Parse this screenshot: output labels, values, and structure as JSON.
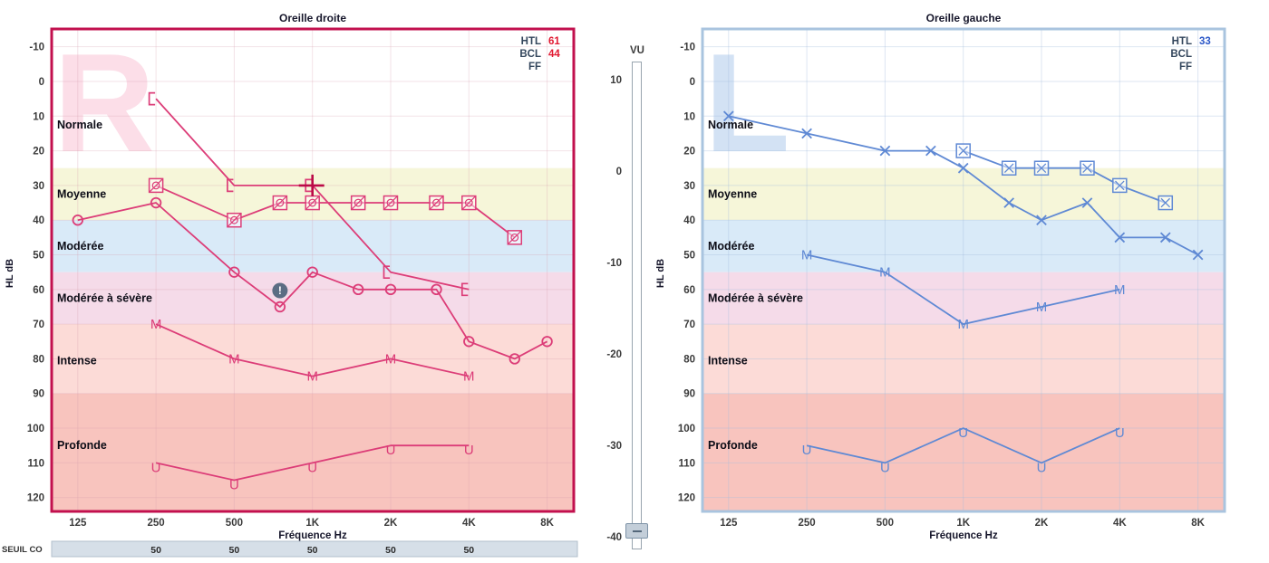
{
  "vu_meter": {
    "label": "VU",
    "ticks": [
      "10",
      "0",
      "-10",
      "-20",
      "-30",
      "-40"
    ]
  },
  "seuil_co": {
    "label": "SEUIL CO",
    "values": [
      "50",
      "50",
      "50",
      "50",
      "50"
    ],
    "freqs": [
      250,
      500,
      1000,
      2000,
      4000
    ]
  },
  "chart_data": [
    {
      "type": "line",
      "ear": "right",
      "title": "Oreille droite",
      "watermark": "R",
      "xlabel": "Fréquence Hz",
      "ylabel": "HL dB",
      "x_ticks": [
        {
          "label": "125",
          "freq": 125
        },
        {
          "label": "250",
          "freq": 250
        },
        {
          "label": "500",
          "freq": 500
        },
        {
          "label": "1K",
          "freq": 1000
        },
        {
          "label": "2K",
          "freq": 2000
        },
        {
          "label": "4K",
          "freq": 4000
        },
        {
          "label": "8K",
          "freq": 8000
        }
      ],
      "y_ticks": [
        -10,
        0,
        10,
        20,
        30,
        40,
        50,
        60,
        70,
        80,
        90,
        100,
        110,
        120
      ],
      "ylim": [
        -15.13,
        124
      ],
      "legend": [
        {
          "label": "HTL",
          "value": "61"
        },
        {
          "label": "BCL",
          "value": "44"
        },
        {
          "label": "FF",
          "value": ""
        }
      ],
      "colors": {
        "border": "#c2104e",
        "series": "#dc3d78",
        "value": "#e11931",
        "watermark": "#fcdee8",
        "grid": "rgba(215,160,175,0.30)",
        "cursor": "#bb0a47",
        "legend_label": "#33465c"
      },
      "bands": [
        {
          "label": "Normale",
          "from_db": -15.13,
          "to_db": 25,
          "color": "#ffffff",
          "label_db": 12.5
        },
        {
          "label": "Moyenne",
          "from_db": 25,
          "to_db": 40,
          "color": "#f6f6d9",
          "label_db": 32.5
        },
        {
          "label": "Modérée",
          "from_db": 40,
          "to_db": 55,
          "color": "#d9eaf8",
          "label_db": 47.5
        },
        {
          "label": "Modérée à sévère",
          "from_db": 55,
          "to_db": 70,
          "color": "#f5dbe9",
          "label_db": 62.5
        },
        {
          "label": "Intense",
          "from_db": 70,
          "to_db": 90,
          "color": "#fcdbd7",
          "label_db": 80.5
        },
        {
          "label": "Profonde",
          "from_db": 90,
          "to_db": 124,
          "color": "#f8c4be",
          "label_db": 105
        }
      ],
      "series": [
        {
          "marker": "circle",
          "points": [
            [
              125,
              40
            ],
            [
              250,
              35
            ],
            [
              500,
              55
            ],
            [
              750,
              65
            ],
            [
              1000,
              55
            ],
            [
              1500,
              60
            ],
            [
              2000,
              60
            ],
            [
              3000,
              60
            ],
            [
              4000,
              75
            ],
            [
              6000,
              80
            ],
            [
              8000,
              75
            ]
          ]
        },
        {
          "marker": "boxed-slash",
          "points": [
            [
              250,
              30
            ],
            [
              500,
              40
            ],
            [
              750,
              35
            ],
            [
              1000,
              35
            ],
            [
              1500,
              35
            ],
            [
              2000,
              35
            ],
            [
              3000,
              35
            ],
            [
              4000,
              35
            ],
            [
              6000,
              45
            ]
          ]
        },
        {
          "marker": "bracket",
          "points": [
            [
              250,
              5
            ],
            [
              500,
              30
            ],
            [
              1000,
              30
            ],
            [
              2000,
              55
            ],
            [
              4000,
              60
            ]
          ]
        },
        {
          "marker": "M",
          "points": [
            [
              250,
              70
            ],
            [
              500,
              80
            ],
            [
              1000,
              85
            ],
            [
              2000,
              80
            ],
            [
              4000,
              85
            ]
          ]
        },
        {
          "marker": "U",
          "points": [
            [
              250,
              110
            ],
            [
              500,
              115
            ],
            [
              1000,
              110
            ],
            [
              2000,
              105
            ],
            [
              4000,
              105
            ]
          ]
        }
      ],
      "annotations": [
        {
          "type": "alert",
          "symbol": "!",
          "freq": 750,
          "db": 60.3
        },
        {
          "type": "cursor-cross",
          "freq": 1000,
          "db": 30
        }
      ],
      "has_seuil_row": true
    },
    {
      "type": "line",
      "ear": "left",
      "title": "Oreille gauche",
      "watermark": "L",
      "xlabel": "Fréquence Hz",
      "ylabel": "HL dB",
      "x_ticks": [
        {
          "label": "125",
          "freq": 125
        },
        {
          "label": "250",
          "freq": 250
        },
        {
          "label": "500",
          "freq": 500
        },
        {
          "label": "1K",
          "freq": 1000
        },
        {
          "label": "2K",
          "freq": 2000
        },
        {
          "label": "4K",
          "freq": 4000
        },
        {
          "label": "8K",
          "freq": 8000
        }
      ],
      "y_ticks": [
        -10,
        0,
        10,
        20,
        30,
        40,
        50,
        60,
        70,
        80,
        90,
        100,
        110,
        120
      ],
      "ylim": [
        -15.13,
        124
      ],
      "legend": [
        {
          "label": "HTL",
          "value": "33"
        },
        {
          "label": "BCL",
          "value": ""
        },
        {
          "label": "FF",
          "value": ""
        }
      ],
      "colors": {
        "border": "#a9c4df",
        "series": "#5f89d4",
        "value": "#2b57c8",
        "watermark": "#d3e2f4",
        "grid": "rgba(165,190,220,0.38)",
        "cursor": "#2b57c8",
        "legend_label": "#33465c"
      },
      "bands": [
        {
          "label": "Normale",
          "from_db": -15.13,
          "to_db": 25,
          "color": "#ffffff",
          "label_db": 12.5
        },
        {
          "label": "Moyenne",
          "from_db": 25,
          "to_db": 40,
          "color": "#f6f6d9",
          "label_db": 32.5
        },
        {
          "label": "Modérée",
          "from_db": 40,
          "to_db": 55,
          "color": "#d9eaf8",
          "label_db": 47.5
        },
        {
          "label": "Modérée à sévère",
          "from_db": 55,
          "to_db": 70,
          "color": "#f5dbe9",
          "label_db": 62.5
        },
        {
          "label": "Intense",
          "from_db": 70,
          "to_db": 90,
          "color": "#fcdbd7",
          "label_db": 80.5
        },
        {
          "label": "Profonde",
          "from_db": 90,
          "to_db": 124,
          "color": "#f8c4be",
          "label_db": 105
        }
      ],
      "series": [
        {
          "marker": "x",
          "points": [
            [
              125,
              10
            ],
            [
              250,
              15
            ],
            [
              500,
              20
            ],
            [
              750,
              20
            ],
            [
              1000,
              25
            ],
            [
              1500,
              35
            ],
            [
              2000,
              40
            ],
            [
              3000,
              35
            ],
            [
              4000,
              45
            ],
            [
              6000,
              45
            ],
            [
              8000,
              50
            ]
          ]
        },
        {
          "marker": "boxed-x",
          "points": [
            [
              1000,
              20
            ],
            [
              1500,
              25
            ],
            [
              2000,
              25
            ],
            [
              3000,
              25
            ],
            [
              4000,
              30
            ],
            [
              6000,
              35
            ]
          ]
        },
        {
          "marker": "M",
          "points": [
            [
              250,
              50
            ],
            [
              500,
              55
            ],
            [
              1000,
              70
            ],
            [
              2000,
              65
            ],
            [
              4000,
              60
            ]
          ]
        },
        {
          "marker": "U",
          "points": [
            [
              250,
              105
            ],
            [
              500,
              110
            ],
            [
              1000,
              100
            ],
            [
              2000,
              110
            ],
            [
              4000,
              100
            ]
          ]
        }
      ],
      "annotations": [],
      "has_seuil_row": false
    }
  ]
}
